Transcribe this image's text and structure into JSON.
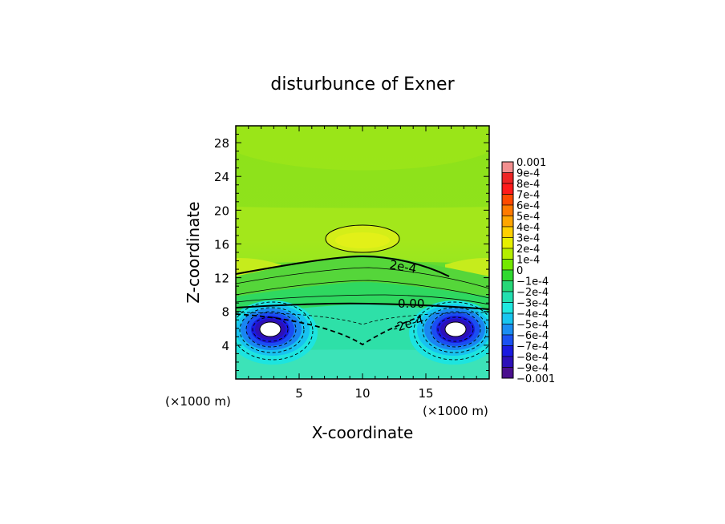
{
  "chart_data": {
    "type": "heatmap",
    "title": "disturbunce of Exner",
    "xlabel": "X-coordinate",
    "ylabel": "Z-coordinate",
    "x_unit_label_left": "(×1000 m)",
    "x_unit_label_right": "(×1000 m)",
    "xlim": [
      0,
      20
    ],
    "ylim": [
      0,
      30
    ],
    "x_ticks": [
      5,
      10,
      15
    ],
    "y_ticks": [
      4,
      8,
      12,
      16,
      20,
      24,
      28
    ],
    "x_tick_labels": [
      "5",
      "10",
      "15"
    ],
    "y_tick_labels": [
      "4",
      "8",
      "12",
      "16",
      "20",
      "24",
      "28"
    ],
    "colorbar": {
      "levels": [
        "0.001",
        "9e-4",
        "8e-4",
        "7e-4",
        "6e-4",
        "5e-4",
        "4e-4",
        "3e-4",
        "2e-4",
        "1e-4",
        "0",
        "−1e-4",
        "−2e-4",
        "−3e-4",
        "−4e-4",
        "−5e-4",
        "−6e-4",
        "−7e-4",
        "−8e-4",
        "−9e-4",
        "−0.001"
      ],
      "colors": [
        "#f28f8f",
        "#ee2424",
        "#ff1a1a",
        "#ff4a00",
        "#ff7a00",
        "#ffa500",
        "#ffd000",
        "#e6f000",
        "#b4ee00",
        "#74e800",
        "#2fd92f",
        "#26d878",
        "#22dfb0",
        "#1fe8e0",
        "#18c6f0",
        "#1a8ef2",
        "#1a52f2",
        "#1a1ae0",
        "#2d10b8",
        "#4a108e"
      ]
    },
    "contour_labels": [
      "2e-4",
      "0.00",
      "-2e-4"
    ],
    "features": [
      {
        "kind": "positive-max",
        "x": 10,
        "z": 16.5,
        "value": 0.00035
      },
      {
        "kind": "negative-min",
        "x": 3,
        "z": 5.7,
        "value": -0.001
      },
      {
        "kind": "negative-min",
        "x": 17,
        "z": 5.7,
        "value": -0.001
      }
    ],
    "grid": false,
    "legend": "right"
  }
}
